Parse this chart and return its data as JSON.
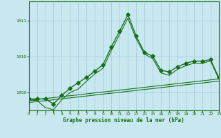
{
  "title": "Graphe pression niveau de la mer (hPa)",
  "xlim": [
    0,
    23
  ],
  "ylim": [
    1008.5,
    1011.55
  ],
  "yticks": [
    1009,
    1010,
    1011
  ],
  "ytick_labels": [
    "1009",
    "1010",
    "1011"
  ],
  "xticks": [
    0,
    1,
    2,
    3,
    4,
    5,
    6,
    7,
    8,
    9,
    10,
    11,
    12,
    13,
    14,
    15,
    16,
    17,
    18,
    19,
    20,
    21,
    22,
    23
  ],
  "bg_color": "#c8e8f0",
  "grid_color": "#a0c8d8",
  "line_color": "#1a6e1a",
  "main_x": [
    0,
    1,
    2,
    3,
    4,
    5,
    6,
    7,
    8,
    9,
    10,
    11,
    12,
    13,
    14,
    15,
    16,
    17,
    18,
    19,
    20,
    21,
    22,
    23
  ],
  "main_y": [
    1008.82,
    1008.82,
    1008.82,
    1008.68,
    1008.92,
    1009.12,
    1009.28,
    1009.42,
    1009.6,
    1009.78,
    1010.28,
    1010.72,
    1011.18,
    1010.58,
    1010.12,
    1010.02,
    1009.62,
    1009.58,
    1009.72,
    1009.82,
    1009.88,
    1009.88,
    1009.92,
    1009.42
  ],
  "line2_x": [
    0,
    1,
    2,
    3,
    4,
    5,
    6,
    7,
    8,
    9,
    10,
    11,
    12,
    13,
    14,
    15,
    16,
    17,
    18,
    19,
    20,
    21,
    22,
    23
  ],
  "line2_y": [
    1008.78,
    1008.78,
    1008.58,
    1008.52,
    1008.8,
    1009.0,
    1009.1,
    1009.32,
    1009.52,
    1009.68,
    1010.18,
    1010.62,
    1011.08,
    1010.5,
    1010.08,
    1009.95,
    1009.55,
    1009.48,
    1009.65,
    1009.75,
    1009.82,
    1009.82,
    1009.88,
    1009.38
  ],
  "line3_x": [
    0,
    23
  ],
  "line3_y": [
    1008.78,
    1009.38
  ],
  "line4_x": [
    0,
    23
  ],
  "line4_y": [
    1008.72,
    1009.32
  ]
}
